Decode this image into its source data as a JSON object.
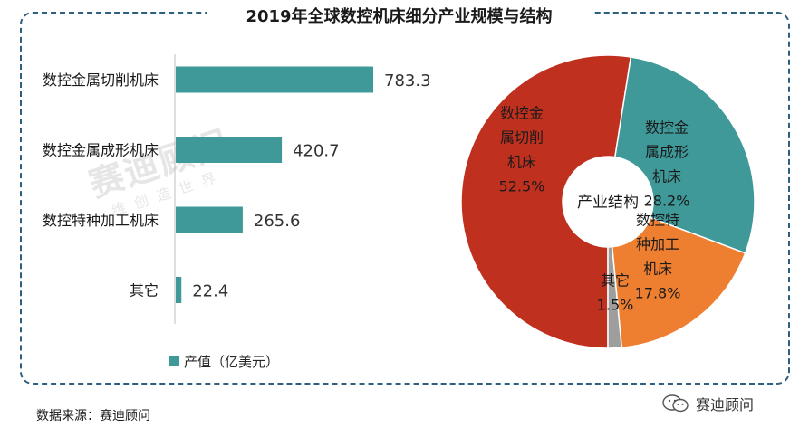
{
  "title": "2019年全球数控机床细分产业规模与结构",
  "legend_label": "产值（亿美元）",
  "source": "数据来源：赛迪顾问",
  "brand": "赛迪顾问",
  "watermark": "赛迪顾问",
  "watermark_sub": "维创造世界",
  "colors": {
    "bar": "#3f9999",
    "pie": [
      "#c0301f",
      "#3f9999",
      "#ee7f30",
      "#9e9e9e"
    ],
    "frame": "#2f5f80"
  },
  "chart_data": [
    {
      "type": "bar",
      "orientation": "horizontal",
      "categories": [
        "数控金属切削机床",
        "数控金属成形机床",
        "数控特种加工机床",
        "其它"
      ],
      "values": [
        783.3,
        420.7,
        265.6,
        22.4
      ],
      "value_labels": [
        "783.3",
        "420.7",
        "265.6",
        "22.4"
      ],
      "series": [
        {
          "name": "产值（亿美元）",
          "values": [
            783.3,
            420.7,
            265.6,
            22.4
          ]
        }
      ],
      "xlim": [
        0,
        783.3
      ],
      "legend": "bottom-left",
      "grid": false
    },
    {
      "type": "pie",
      "donut": true,
      "center_label": "产业结构",
      "slices": [
        {
          "label": [
            "数控金",
            "属切削",
            "机床",
            "52.5%"
          ],
          "value": 52.5
        },
        {
          "label": [
            "数控金",
            "属成形",
            "机床",
            "28.2%"
          ],
          "value": 28.2
        },
        {
          "label": [
            "数控特",
            "种加工",
            "机床",
            "17.8%"
          ],
          "value": 17.8
        },
        {
          "label": [
            "其它",
            "1.5%"
          ],
          "value": 1.5
        }
      ]
    }
  ]
}
